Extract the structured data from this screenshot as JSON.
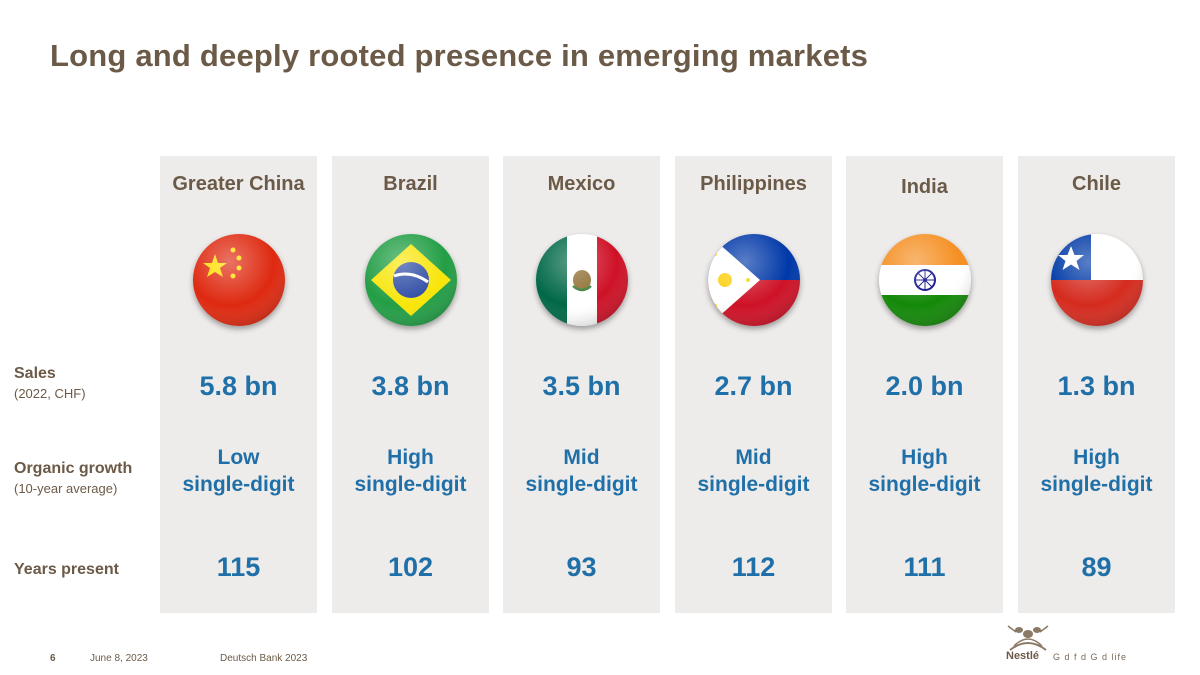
{
  "title": "Long and deeply rooted presence in emerging markets",
  "row_labels": {
    "sales": "Sales",
    "sales_sub": "(2022, CHF)",
    "growth": "Organic growth",
    "growth_sub": "(10-year average)",
    "years": "Years present"
  },
  "markets": [
    {
      "country": "Greater China",
      "sales": "5.8 bn",
      "growth_1": "Low",
      "growth_2": "single-digit",
      "years": "115",
      "flag": "china-flag-icon"
    },
    {
      "country": "Brazil",
      "sales": "3.8 bn",
      "growth_1": "High",
      "growth_2": "single-digit",
      "years": "102",
      "flag": "brazil-flag-icon"
    },
    {
      "country": "Mexico",
      "sales": "3.5 bn",
      "growth_1": "Mid",
      "growth_2": "single-digit",
      "years": "93",
      "flag": "mexico-flag-icon"
    },
    {
      "country": "Philippines",
      "sales": "2.7 bn",
      "growth_1": "Mid",
      "growth_2": "single-digit",
      "years": "112",
      "flag": "philippines-flag-icon"
    },
    {
      "country": "India",
      "sales": "2.0 bn",
      "growth_1": "High",
      "growth_2": "single-digit",
      "years": "111",
      "flag": "india-flag-icon"
    },
    {
      "country": "Chile",
      "sales": "1.3 bn",
      "growth_1": "High",
      "growth_2": "single-digit",
      "years": "89",
      "flag": "chile-flag-icon"
    }
  ],
  "footer": {
    "page": "6",
    "date": "June 8, 2023",
    "event": "Deutsch Bank 2023",
    "brand": "Nestlé",
    "tagline": "G    d f   d  G    d life"
  },
  "colors": {
    "title": "#6b5a47",
    "value": "#1f6fa8",
    "column_bg": "#eeecea"
  }
}
